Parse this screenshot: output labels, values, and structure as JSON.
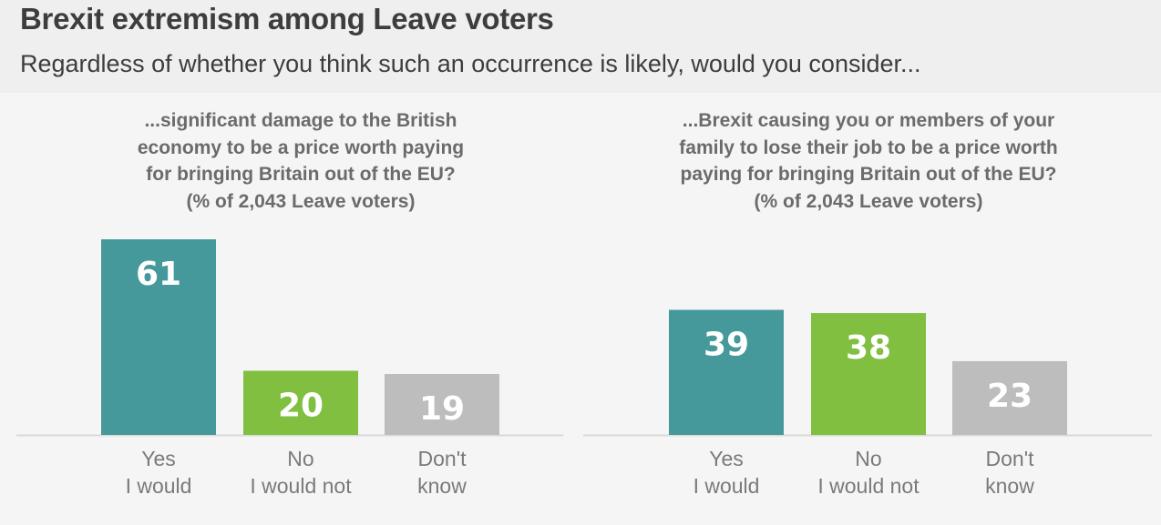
{
  "header": {
    "title": "Brexit extremism among Leave voters",
    "subtitle": "Regardless of whether you think such an occurrence is likely, would you consider..."
  },
  "colors": {
    "yes": "#46999b",
    "no": "#80bf40",
    "dont_know": "#bdbdbd",
    "axis": "#d9d9d9"
  },
  "chart_data": [
    {
      "type": "bar",
      "title_lines": [
        "...significant damage to the British",
        "economy to be a price worth paying",
        "for bringing Britain out of the EU?",
        "(% of 2,043 Leave voters)"
      ],
      "categories": [
        [
          "Yes",
          "I would"
        ],
        [
          "No",
          "I would not"
        ],
        [
          "Don't",
          "know"
        ]
      ],
      "values": [
        61,
        20,
        19
      ],
      "ylim": [
        0,
        61
      ]
    },
    {
      "type": "bar",
      "title_lines": [
        "...Brexit causing you or members of your",
        "family to lose their job to be a price worth",
        "paying for bringing Britain out of the EU?",
        "(% of 2,043 Leave voters)"
      ],
      "categories": [
        [
          "Yes",
          "I would"
        ],
        [
          "No",
          "I would not"
        ],
        [
          "Don't",
          "know"
        ]
      ],
      "values": [
        39,
        38,
        23
      ],
      "ylim": [
        0,
        61
      ]
    }
  ]
}
